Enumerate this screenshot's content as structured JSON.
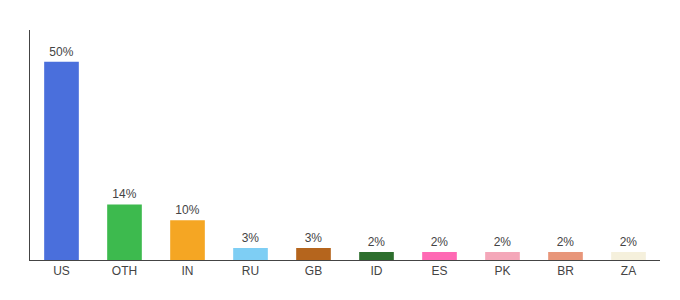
{
  "chart_data": {
    "type": "bar",
    "categories": [
      "US",
      "OTH",
      "IN",
      "RU",
      "GB",
      "ID",
      "ES",
      "PK",
      "BR",
      "ZA"
    ],
    "values": [
      50,
      14,
      10,
      3,
      3,
      2,
      2,
      2,
      2,
      2
    ],
    "value_labels": [
      "50%",
      "14%",
      "10%",
      "3%",
      "3%",
      "2%",
      "2%",
      "2%",
      "2%",
      "2%"
    ],
    "colors": [
      "#4a6fdc",
      "#3dba4e",
      "#f5a623",
      "#7ecef4",
      "#b5651d",
      "#2d6e2d",
      "#ff69b4",
      "#f4a7b9",
      "#e8967a",
      "#f5f0dc"
    ],
    "ylim": [
      0,
      58
    ],
    "grid": false,
    "data_labels": true,
    "tick_labels": "x"
  }
}
